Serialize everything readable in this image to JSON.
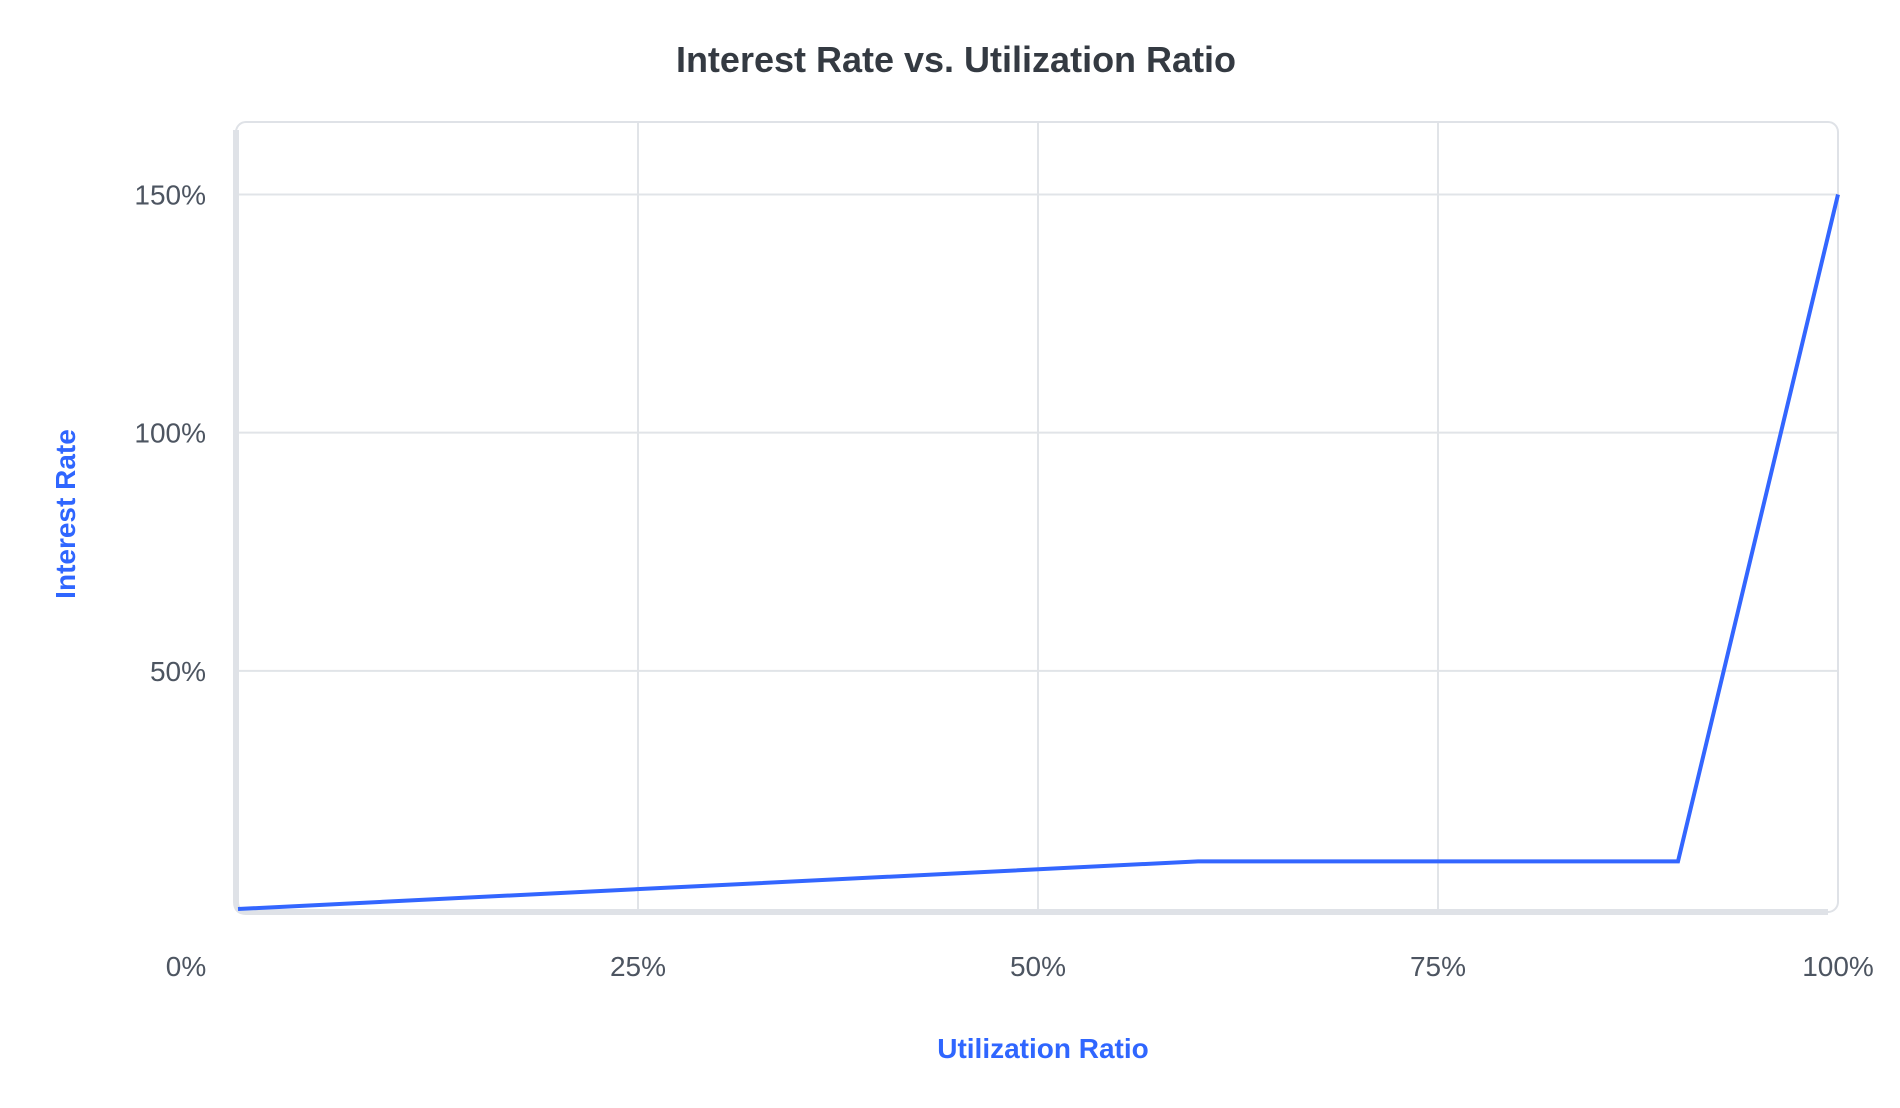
{
  "chart_data": {
    "type": "line",
    "title": "Interest Rate vs. Utilization Ratio",
    "xlabel": "Utilization Ratio",
    "ylabel": "Interest Rate",
    "xlim": [
      0,
      100
    ],
    "ylim": [
      0,
      150
    ],
    "x_ticks": [
      0,
      25,
      50,
      75,
      100
    ],
    "x_tick_labels": [
      "0%",
      "25%",
      "50%",
      "75%",
      "100%"
    ],
    "y_ticks": [
      50,
      100,
      150
    ],
    "y_tick_labels": [
      "50%",
      "100%",
      "150%"
    ],
    "grid": true,
    "series": [
      {
        "name": "Interest Rate",
        "color": "#3366ff",
        "x": [
          0,
          60,
          90,
          100
        ],
        "y": [
          0,
          10,
          10,
          150
        ]
      }
    ]
  },
  "colors": {
    "line": "#3366ff",
    "grid": "#e1e4e8",
    "frame": "#dfe2e7",
    "axis_title": "#2f66ff",
    "title": "#343a42",
    "tick": "#4d5561"
  }
}
